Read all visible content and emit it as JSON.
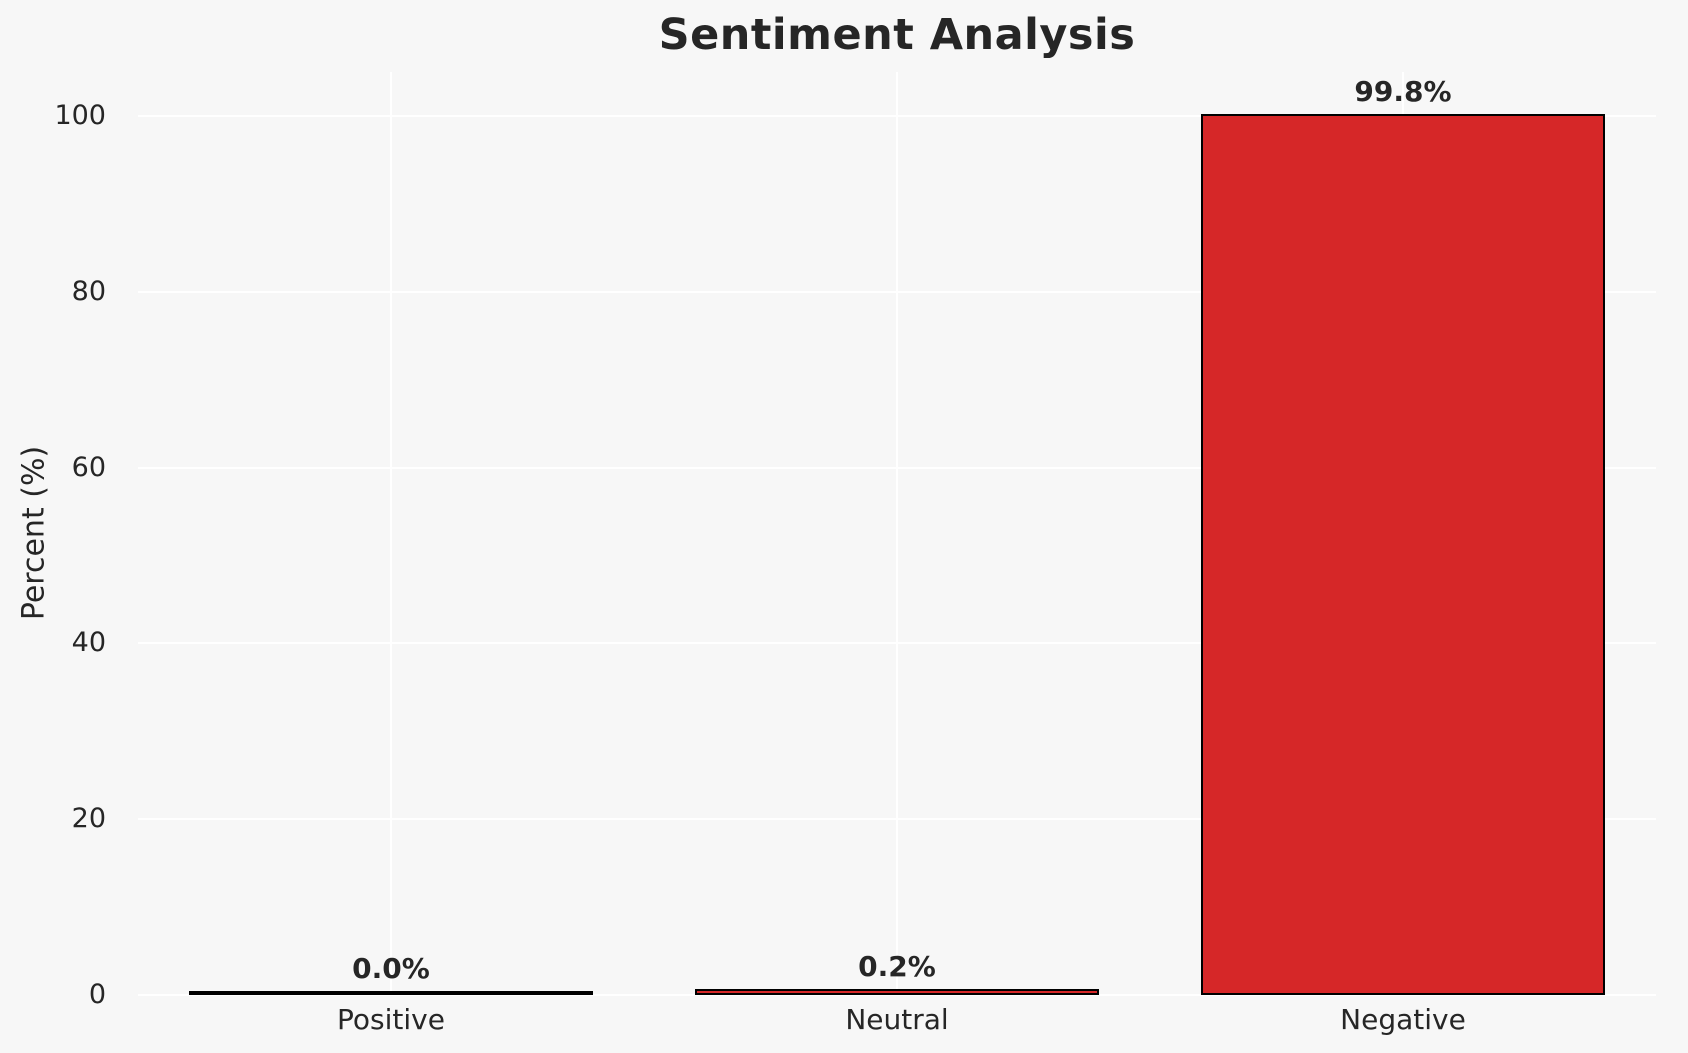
{
  "figure": {
    "background_color": "#f7f7f7",
    "grid_color": "#ffffff",
    "text_color": "#262626"
  },
  "chart_data": {
    "type": "bar",
    "title": "Sentiment Analysis",
    "xlabel": "",
    "ylabel": "Percent (%)",
    "categories": [
      "Positive",
      "Neutral",
      "Negative"
    ],
    "values": [
      0.0,
      0.2,
      99.8
    ],
    "bar_labels": [
      "0.0%",
      "0.2%",
      "99.8%"
    ],
    "yticks": [
      0,
      20,
      40,
      60,
      80,
      100
    ],
    "ylim": [
      0,
      105
    ],
    "grid": true,
    "legend": false,
    "bar_color": "#d62728",
    "bar_edge_color": "#000000",
    "bar_relative_width": 0.8
  }
}
